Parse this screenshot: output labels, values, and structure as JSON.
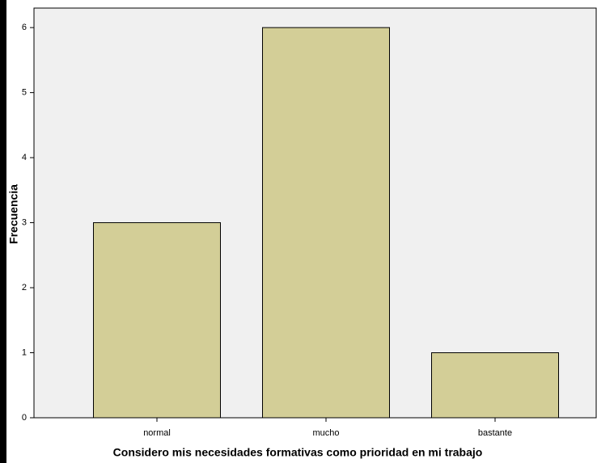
{
  "chart_data": {
    "type": "bar",
    "x_label": "Considero mis necesidades formativas como prioridad en mi trabajo",
    "y_label": "Frecuencia",
    "categories": [
      "normal",
      "mucho",
      "bastante"
    ],
    "values": [
      3,
      6,
      1
    ],
    "color": "#d3ce97",
    "ylim": [
      0,
      6.3
    ],
    "yticks": [
      0,
      1,
      2,
      3,
      4,
      5,
      6
    ]
  }
}
